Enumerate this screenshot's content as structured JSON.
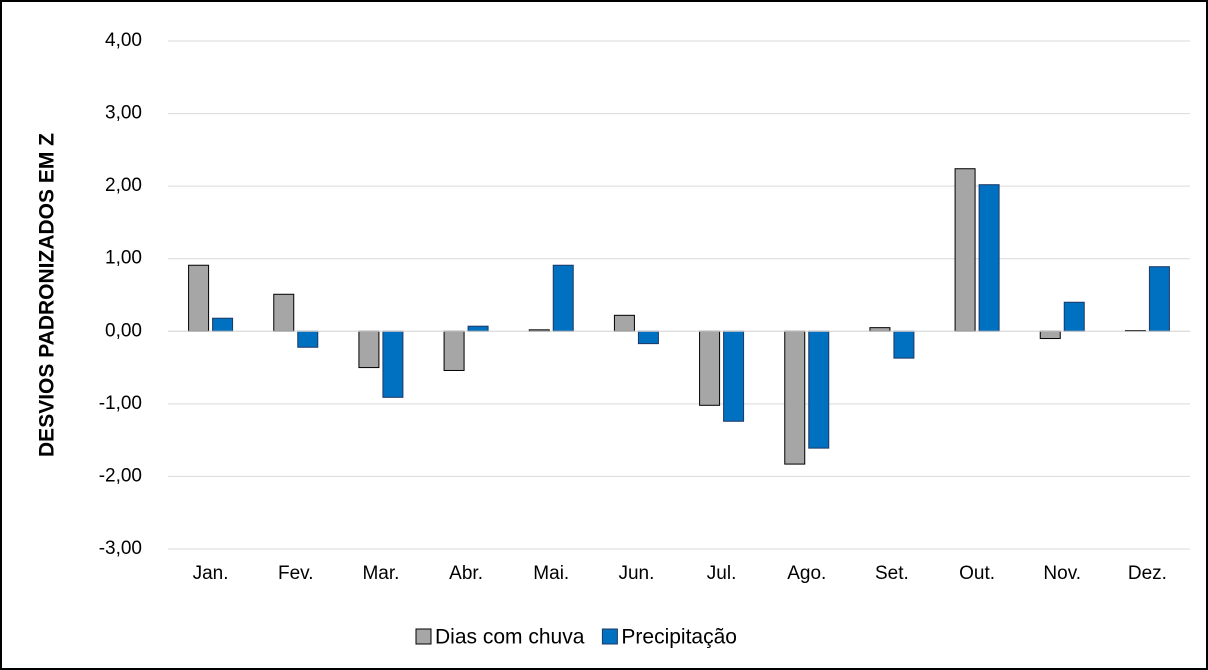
{
  "chart_data": {
    "type": "bar",
    "y_label": "DESVIOS PADRONIZADOS EM Z",
    "categories": [
      "Jan.",
      "Fev.",
      "Mar.",
      "Abr.",
      "Mai.",
      "Jun.",
      "Jul.",
      "Ago.",
      "Set.",
      "Out.",
      "Nov.",
      "Dez."
    ],
    "series": [
      {
        "name": "Dias com chuva",
        "color": "#a6a6a6",
        "values": [
          0.91,
          0.51,
          -0.5,
          -0.54,
          0.02,
          0.22,
          -1.02,
          -1.83,
          0.05,
          2.24,
          -0.1,
          0.01
        ]
      },
      {
        "name": "Precipitação",
        "color": "#0070c0",
        "values": [
          0.18,
          -0.22,
          -0.91,
          0.07,
          0.91,
          -0.17,
          -1.24,
          -1.61,
          -0.37,
          2.02,
          0.4,
          0.89
        ]
      }
    ],
    "ylim": [
      -3,
      4
    ],
    "yticks": [
      {
        "value": -3,
        "label": "-3,00"
      },
      {
        "value": -2,
        "label": "-2,00"
      },
      {
        "value": -1,
        "label": "-1,00"
      },
      {
        "value": 0,
        "label": "0,00"
      },
      {
        "value": 1,
        "label": "1,00"
      },
      {
        "value": 2,
        "label": "2,00"
      },
      {
        "value": 3,
        "label": "3,00"
      },
      {
        "value": 4,
        "label": "4,00"
      }
    ],
    "grid": true,
    "legend": "bottom"
  }
}
